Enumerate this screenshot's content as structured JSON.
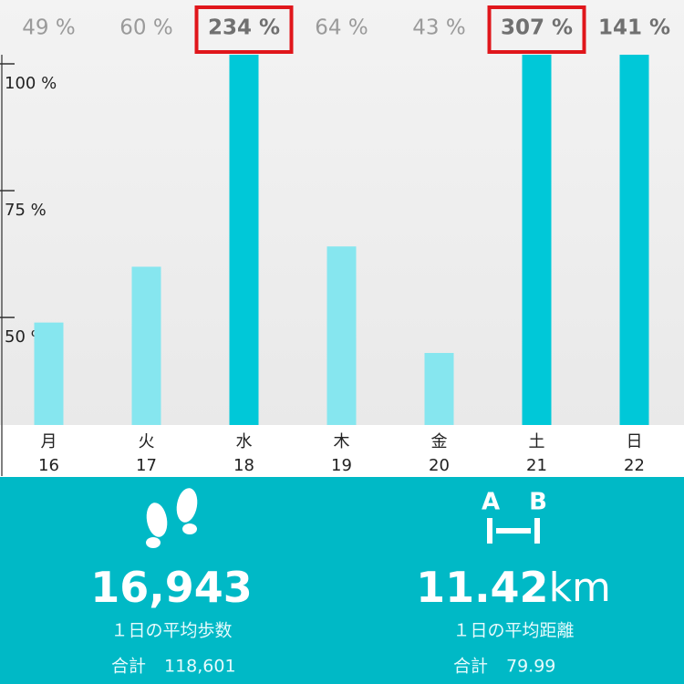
{
  "chart_data": {
    "type": "bar",
    "categories": [
      "月",
      "火",
      "水",
      "木",
      "金",
      "土",
      "日"
    ],
    "dates": [
      "16",
      "17",
      "18",
      "19",
      "20",
      "21",
      "22"
    ],
    "values": [
      49,
      60,
      234,
      64,
      43,
      307,
      141
    ],
    "value_labels": [
      "49 %",
      "60 %",
      "234 %",
      "64 %",
      "43 %",
      "307 %",
      "141 %"
    ],
    "colors": [
      "#86e6ef",
      "#86e6ef",
      "#00c8d8",
      "#86e6ef",
      "#86e6ef",
      "#00c8d8",
      "#00c8d8"
    ],
    "boxed": [
      false,
      false,
      true,
      false,
      false,
      true,
      false
    ],
    "ylim": [
      28.8,
      100
    ],
    "yticks": [
      {
        "value": 50,
        "label": "50 %"
      },
      {
        "value": 75,
        "label": "75 %"
      },
      {
        "value": 100,
        "label": "100 %"
      }
    ]
  },
  "stats": [
    {
      "value": "16,943",
      "unit": "",
      "label": "１日の平均歩数",
      "total_label": "合計",
      "total": "118,601"
    },
    {
      "value": "11.42",
      "unit": "km",
      "label": "１日の平均距離",
      "total_label": "合計",
      "total": "79.99"
    }
  ],
  "icon_labels": [
    "A",
    "B"
  ]
}
